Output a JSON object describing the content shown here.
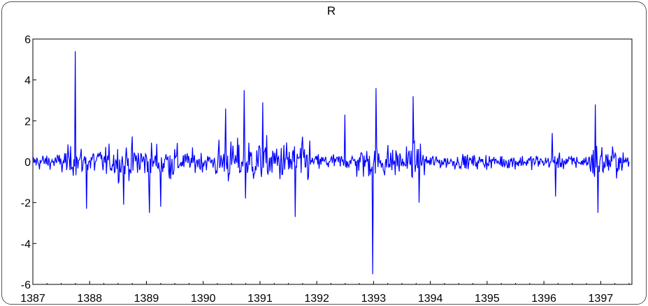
{
  "chart_data": {
    "type": "line",
    "title": "R",
    "xlabel": "",
    "ylabel": "",
    "x_ticks": [
      "1387",
      "1388",
      "1389",
      "1390",
      "1391",
      "1392",
      "1393",
      "1394",
      "1395",
      "1396",
      "1397"
    ],
    "x_range": [
      1387,
      1397.55
    ],
    "ylim": [
      -6,
      6
    ],
    "y_ticks": [
      6,
      4,
      2,
      0,
      -2,
      -4,
      -6
    ],
    "y_tick_labels": [
      "6",
      "4",
      "2",
      "0",
      "-2",
      "-4",
      "-6"
    ],
    "grid": false,
    "legend": "none",
    "series": [
      {
        "color": "#0000ff",
        "spikes": [
          {
            "x": 1387.75,
            "y": 5.4
          },
          {
            "x": 1387.94,
            "y": -2.3
          },
          {
            "x": 1388.6,
            "y": -2.1
          },
          {
            "x": 1389.05,
            "y": -2.5
          },
          {
            "x": 1389.25,
            "y": -2.2
          },
          {
            "x": 1390.4,
            "y": 2.6
          },
          {
            "x": 1390.72,
            "y": 3.5
          },
          {
            "x": 1390.75,
            "y": -1.8
          },
          {
            "x": 1391.05,
            "y": 2.9
          },
          {
            "x": 1391.62,
            "y": -2.7
          },
          {
            "x": 1392.5,
            "y": 2.3
          },
          {
            "x": 1392.98,
            "y": -5.5
          },
          {
            "x": 1393.04,
            "y": 3.6
          },
          {
            "x": 1393.7,
            "y": 3.2
          },
          {
            "x": 1393.8,
            "y": -2.0
          },
          {
            "x": 1396.15,
            "y": 1.4
          },
          {
            "x": 1396.2,
            "y": -1.7
          },
          {
            "x": 1396.9,
            "y": 2.8
          },
          {
            "x": 1396.95,
            "y": -2.5
          }
        ],
        "volatility": [
          {
            "from": 1387.0,
            "to": 1387.5,
            "amp": 0.5
          },
          {
            "from": 1387.5,
            "to": 1388.5,
            "amp": 0.9
          },
          {
            "from": 1388.5,
            "to": 1389.6,
            "amp": 1.15
          },
          {
            "from": 1389.6,
            "to": 1390.2,
            "amp": 0.65
          },
          {
            "from": 1390.2,
            "to": 1391.9,
            "amp": 1.3
          },
          {
            "from": 1391.9,
            "to": 1392.7,
            "amp": 0.5
          },
          {
            "from": 1392.7,
            "to": 1393.9,
            "amp": 1.0
          },
          {
            "from": 1393.9,
            "to": 1396.8,
            "amp": 0.45
          },
          {
            "from": 1396.8,
            "to": 1397.3,
            "amp": 1.1
          }
        ]
      }
    ]
  }
}
